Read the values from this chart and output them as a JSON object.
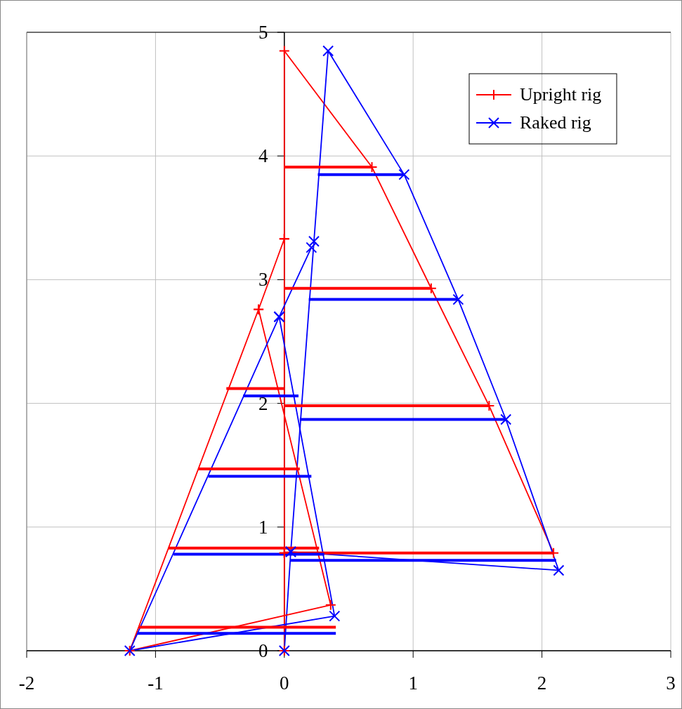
{
  "chart_data": {
    "type": "line",
    "xlim": [
      -2,
      3
    ],
    "ylim": [
      0,
      5
    ],
    "xticks": [
      -2,
      -1,
      0,
      1,
      2,
      3
    ],
    "yticks": [
      0,
      1,
      2,
      3,
      4,
      5
    ],
    "grid": true,
    "legend": "top right",
    "series": [
      {
        "name": "Upright rig",
        "color": "#ff0000",
        "marker": "cross",
        "x": [
          0,
          0,
          0,
          0,
          0.68,
          1.14,
          1.59,
          2.09,
          0
        ],
        "values": [
          0,
          0.79,
          3.33,
          4.85,
          3.91,
          2.93,
          1.98,
          0.79,
          0.79
        ]
      },
      {
        "name": "Raked rig",
        "color": "#0000ff",
        "marker": "cross",
        "x": [
          0,
          0.05,
          0.23,
          0.34,
          0.93,
          1.35,
          1.72,
          2.13,
          0.05
        ],
        "values": [
          0,
          0.8,
          3.31,
          4.85,
          3.85,
          2.84,
          1.87,
          0.65,
          0.8
        ]
      },
      {
        "color": "#ff0000",
        "marker": "cross",
        "x": [
          0,
          -0.2,
          -1.2,
          0.36,
          -0.2
        ],
        "values": [
          3.33,
          2.76,
          0,
          0.37,
          2.76
        ]
      },
      {
        "color": "#0000ff",
        "marker": "cross",
        "x": [
          0.21,
          -0.04,
          -1.2,
          0.39,
          -0.04
        ],
        "values": [
          3.26,
          2.7,
          0,
          0.28,
          2.7
        ]
      },
      {
        "color": "#ff0000",
        "marker": "none",
        "x": [
          0,
          0.68
        ],
        "values": [
          3.91,
          3.91
        ]
      },
      {
        "color": "#ff0000",
        "marker": "none",
        "x": [
          0,
          1.14
        ],
        "values": [
          2.93,
          2.93
        ]
      },
      {
        "color": "#ff0000",
        "marker": "none",
        "x": [
          0,
          1.59
        ],
        "values": [
          1.98,
          1.98
        ]
      },
      {
        "color": "#ff0000",
        "marker": "none",
        "x": [
          0,
          2.09
        ],
        "values": [
          0.79,
          0.79
        ]
      },
      {
        "color": "#ff0000",
        "marker": "none",
        "x": [
          -0.45,
          0
        ],
        "values": [
          2.12,
          2.12
        ]
      },
      {
        "color": "#ff0000",
        "marker": "none",
        "x": [
          -0.67,
          0.12
        ],
        "values": [
          1.47,
          1.47
        ]
      },
      {
        "color": "#ff0000",
        "marker": "none",
        "x": [
          -0.9,
          0.27
        ],
        "values": [
          0.83,
          0.83
        ]
      },
      {
        "color": "#ff0000",
        "marker": "none",
        "x": [
          -1.13,
          0.4
        ],
        "values": [
          0.19,
          0.19
        ]
      },
      {
        "color": "#0000ff",
        "marker": "none",
        "x": [
          0.26,
          0.93
        ],
        "values": [
          3.85,
          3.85
        ]
      },
      {
        "color": "#0000ff",
        "marker": "none",
        "x": [
          0.19,
          1.35
        ],
        "values": [
          2.84,
          2.84
        ]
      },
      {
        "color": "#0000ff",
        "marker": "none",
        "x": [
          0.12,
          1.72
        ],
        "values": [
          1.87,
          1.87
        ]
      },
      {
        "color": "#0000ff",
        "marker": "none",
        "x": [
          0.05,
          2.11
        ],
        "values": [
          0.73,
          0.73
        ]
      },
      {
        "color": "#0000ff",
        "marker": "none",
        "x": [
          -0.32,
          0.11
        ],
        "values": [
          2.06,
          2.06
        ]
      },
      {
        "color": "#0000ff",
        "marker": "none",
        "x": [
          -0.59,
          0.21
        ],
        "values": [
          1.41,
          1.41
        ]
      },
      {
        "color": "#0000ff",
        "marker": "none",
        "x": [
          -0.86,
          0.31
        ],
        "values": [
          0.78,
          0.78
        ]
      },
      {
        "color": "#0000ff",
        "marker": "none",
        "x": [
          -1.14,
          0.4
        ],
        "values": [
          0.14,
          0.14
        ]
      }
    ]
  }
}
